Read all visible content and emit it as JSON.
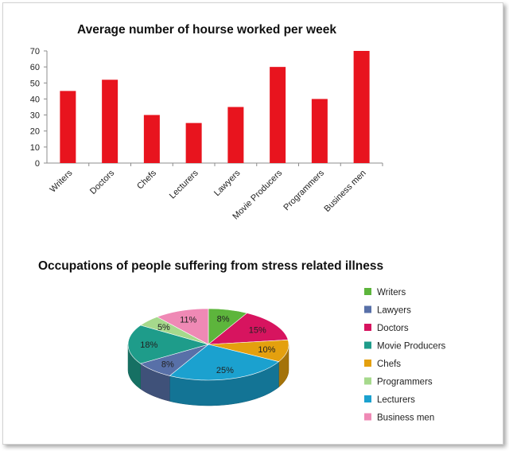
{
  "chart_data": [
    {
      "type": "bar",
      "title": "Average number of hourse worked per week",
      "categories": [
        "Writers",
        "Doctors",
        "Chefs",
        "Lecturers",
        "Lawyers",
        "Movie Producers",
        "Programmers",
        "Business men"
      ],
      "values": [
        45,
        52,
        30,
        25,
        35,
        60,
        40,
        70
      ],
      "yticks": [
        "0",
        "10",
        "20",
        "30",
        "40",
        "50",
        "60",
        "70"
      ],
      "ylim": [
        0,
        70
      ],
      "grid": false,
      "colors": {
        "bar": "#e8141e"
      }
    },
    {
      "type": "pie",
      "title": "Occupations of people suffering from stress  related illness",
      "slices": [
        {
          "label": "Writers",
          "value": 8,
          "text": "8%",
          "color": "#5db53c"
        },
        {
          "label": "Doctors",
          "value": 15,
          "text": "15%",
          "color": "#d7145f"
        },
        {
          "label": "Chefs",
          "value": 10,
          "text": "10%",
          "color": "#e4a00e"
        },
        {
          "label": "Lecturers",
          "value": 25,
          "text": "25%",
          "color": "#1ba1cf"
        },
        {
          "label": "Lawyers",
          "value": 8,
          "text": "8%",
          "color": "#5870a8"
        },
        {
          "label": "Movie Producers",
          "value": 18,
          "text": "18%",
          "color": "#1e9c8a"
        },
        {
          "label": "Programmers",
          "value": 5,
          "text": "5%",
          "color": "#a6d98c"
        },
        {
          "label": "Business men",
          "value": 11,
          "text": "11%",
          "color": "#ef89b5"
        }
      ],
      "legend": [
        "Writers",
        "Lawyers",
        "Doctors",
        "Movie Producers",
        "Chefs",
        "Programmers",
        "Lecturers",
        "Business men"
      ],
      "legend_position": "right"
    }
  ]
}
